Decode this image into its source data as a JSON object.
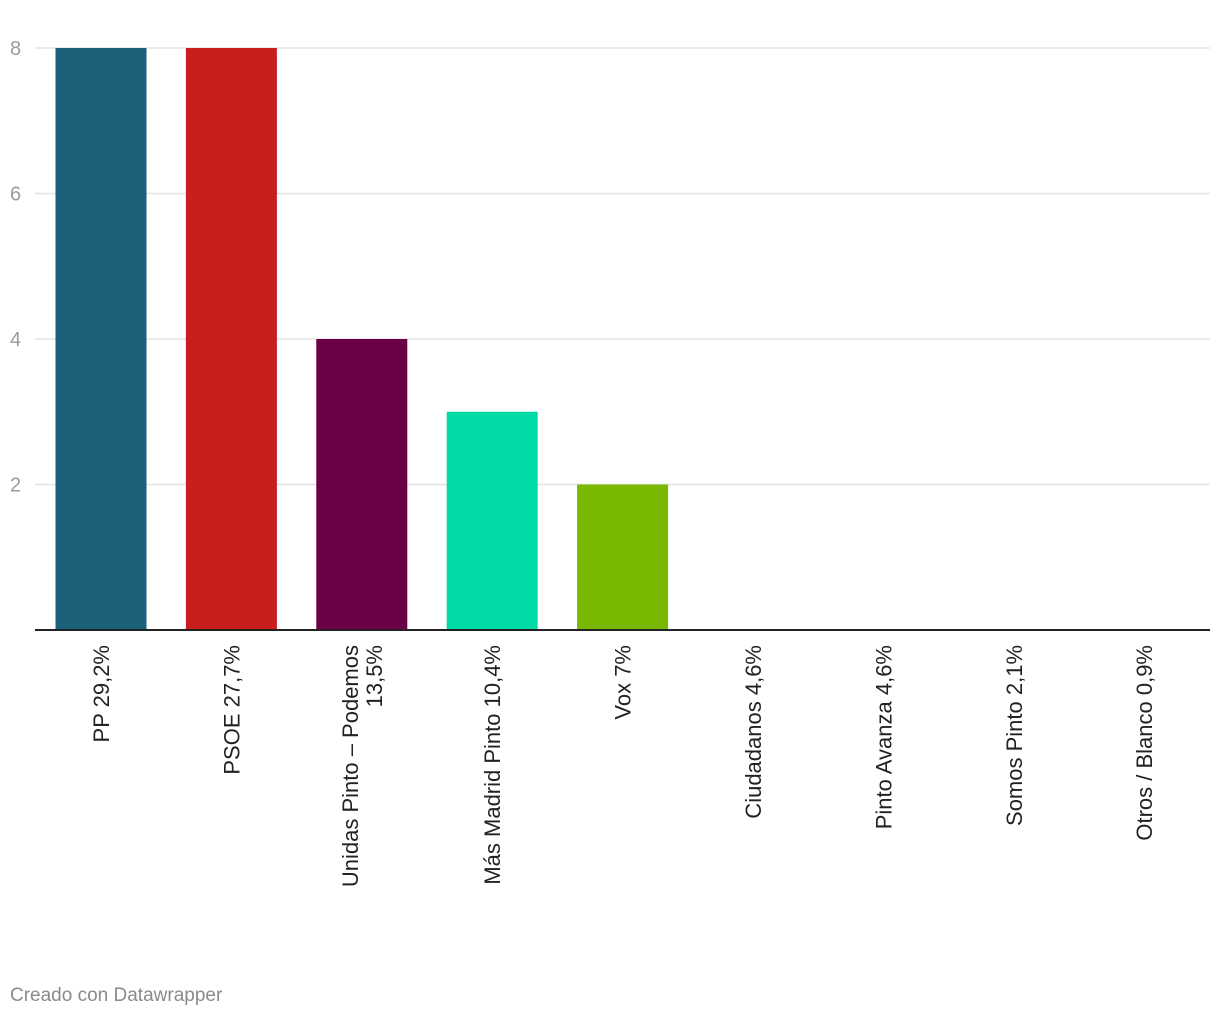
{
  "chart_data": {
    "type": "bar",
    "categories": [
      "PP 29,2%",
      "PSOE 27,7%",
      "Unidas Pinto – Podemos 13,5%",
      "Más Madrid Pinto 10,4%",
      "Vox 7%",
      "Ciudadanos 4,6%",
      "Pinto Avanza 4,6%",
      "Somos Pinto 2,1%",
      "Otros / Blanco 0,9%"
    ],
    "category_lines": [
      [
        "PP 29,2%"
      ],
      [
        "PSOE 27,7%"
      ],
      [
        "Unidas Pinto – Podemos",
        "13,5%"
      ],
      [
        "Más Madrid Pinto 10,4%"
      ],
      [
        "Vox 7%"
      ],
      [
        "Ciudadanos 4,6%"
      ],
      [
        "Pinto Avanza 4,6%"
      ],
      [
        "Somos Pinto 2,1%"
      ],
      [
        "Otros / Blanco 0,9%"
      ]
    ],
    "values": [
      8,
      8,
      4,
      3,
      2,
      0,
      0,
      0,
      0
    ],
    "colors": [
      "#1a6078",
      "#c81e1e",
      "#6a0045",
      "#00dba5",
      "#7ab800",
      "#cccccc",
      "#cccccc",
      "#cccccc",
      "#cccccc"
    ],
    "yticks": [
      2,
      4,
      6,
      8
    ],
    "ylim": [
      0,
      8
    ],
    "grid": true,
    "xlabel": "",
    "ylabel": ""
  },
  "footer": {
    "credit": "Creado con Datawrapper"
  }
}
